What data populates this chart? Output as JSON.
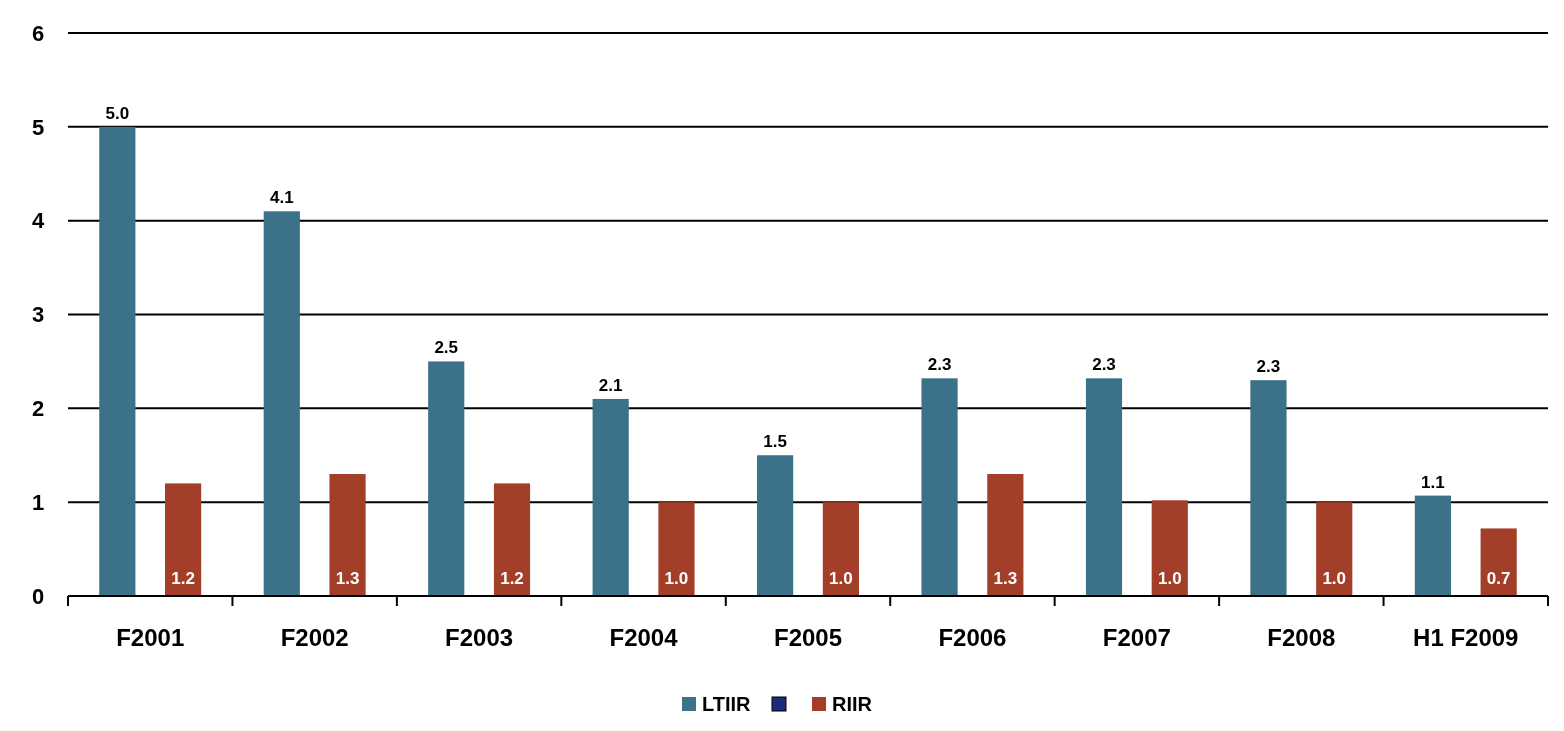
{
  "chart_data": {
    "type": "bar",
    "categories": [
      "F2001",
      "F2002",
      "F2003",
      "F2004",
      "F2005",
      "F2006",
      "F2007",
      "F2008",
      "H1 F2009"
    ],
    "series": [
      {
        "name": "LTIIR",
        "color": "#3b7189",
        "values": [
          5.0,
          4.1,
          2.5,
          2.1,
          1.5,
          2.32,
          2.32,
          2.3,
          1.07
        ],
        "value_labels": [
          "5.0",
          "4.1",
          "2.5",
          "2.1",
          "1.5",
          "2.3",
          "2.3",
          "2.3",
          "1.1"
        ]
      },
      {
        "name": "RIIR",
        "color": "#a33f28",
        "values": [
          1.2,
          1.3,
          1.2,
          1.0,
          1.0,
          1.3,
          1.02,
          1.0,
          0.72
        ],
        "value_labels": [
          "1.2",
          "1.3",
          "1.2",
          "1.0",
          "1.0",
          "1.3",
          "1.0",
          "1.0",
          "0.7"
        ]
      }
    ],
    "ylim": [
      0,
      6
    ],
    "yticks": [
      0,
      1,
      2,
      3,
      4,
      5,
      6
    ],
    "grid": "y",
    "legend": "bottom"
  }
}
